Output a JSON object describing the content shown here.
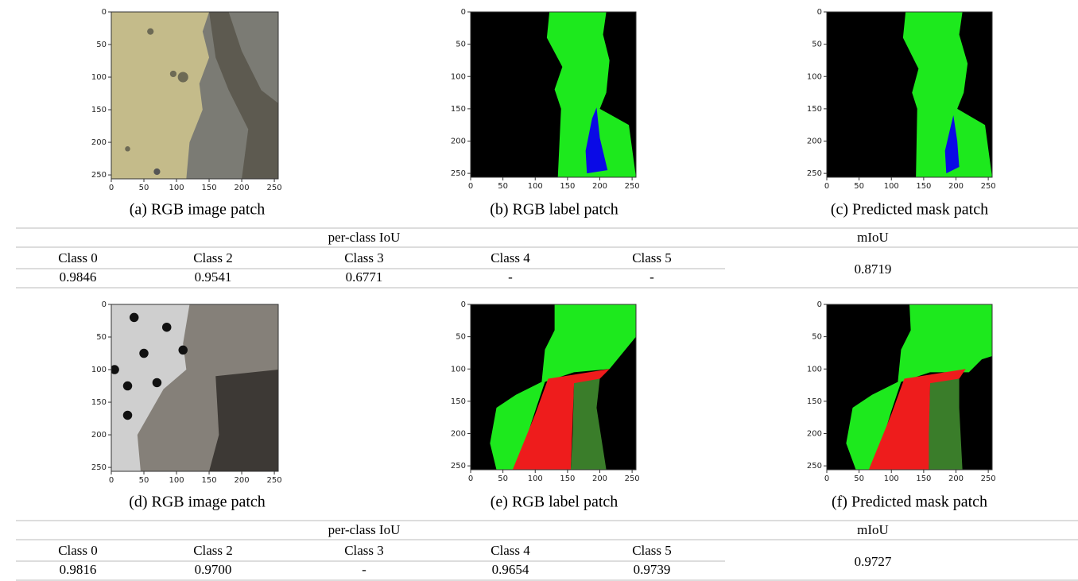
{
  "figure": {
    "axis_ticks": [
      0,
      50,
      100,
      150,
      200,
      250
    ],
    "rows": [
      {
        "panels": [
          {
            "caption": "(a) RGB image patch"
          },
          {
            "caption": "(b) RGB label patch"
          },
          {
            "caption": "(c) Predicted mask patch"
          }
        ],
        "table": {
          "group_header": "per-class IoU",
          "miou_header": "mIoU",
          "classes": [
            "Class 0",
            "Class 2",
            "Class 3",
            "Class 4",
            "Class 5"
          ],
          "values": [
            "0.9846",
            "0.9541",
            "0.6771",
            "-",
            "-"
          ],
          "miou": "0.8719"
        }
      },
      {
        "panels": [
          {
            "caption": "(d) RGB image patch"
          },
          {
            "caption": "(e) RGB label patch"
          },
          {
            "caption": "(f) Predicted mask patch"
          }
        ],
        "table": {
          "group_header": "per-class IoU",
          "miou_header": "mIoU",
          "classes": [
            "Class 0",
            "Class 2",
            "Class 3",
            "Class 4",
            "Class 5"
          ],
          "values": [
            "0.9816",
            "0.9700",
            "-",
            "0.9654",
            "0.9739"
          ],
          "miou": "0.9727"
        }
      }
    ]
  }
}
